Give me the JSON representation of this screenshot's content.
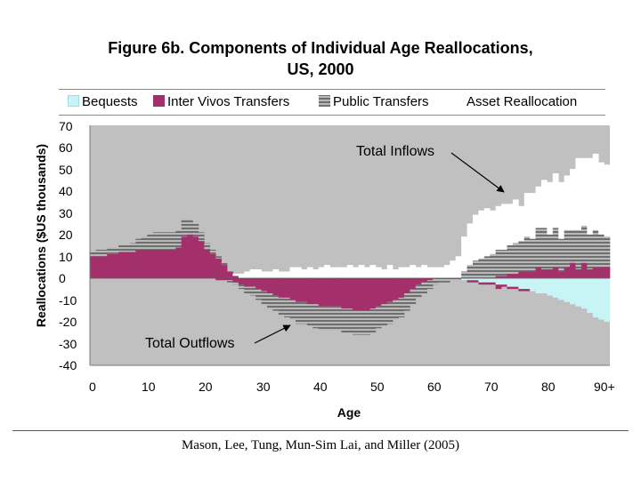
{
  "chart_data": {
    "type": "bar",
    "stacked": true,
    "title": "Figure 6b. Components of Individual Age Reallocations,",
    "subtitle": "US, 2000",
    "xlabel": "Age",
    "ylabel": "Reallocations ($US thousands)",
    "ylim": [
      -40,
      70
    ],
    "xlim": [
      0,
      90
    ],
    "yticks": [
      "70",
      "60",
      "50",
      "40",
      "30",
      "20",
      "10",
      "0",
      "-10",
      "-20",
      "-30",
      "-40"
    ],
    "xticks": [
      "0",
      "10",
      "20",
      "30",
      "40",
      "50",
      "60",
      "70",
      "80",
      "90+"
    ],
    "legend": [
      "Bequests",
      "Inter Vivos Transfers",
      "Public Transfers",
      "Asset Reallocation"
    ],
    "series": [
      {
        "name": "Bequests",
        "pos": [
          0,
          0,
          0,
          0,
          0,
          0,
          0,
          0,
          0,
          0,
          0,
          0,
          0,
          0,
          0,
          0,
          0,
          0,
          0,
          0,
          0,
          0,
          0,
          0,
          0,
          0,
          0,
          0,
          0,
          0,
          0,
          0,
          0,
          0,
          0,
          0,
          0,
          0,
          0,
          0,
          0,
          0,
          0,
          0,
          0,
          0,
          0,
          0,
          0,
          0,
          0,
          0,
          0,
          0,
          0,
          0,
          0,
          0,
          0,
          0,
          0,
          0,
          0,
          0,
          0,
          0,
          0,
          0,
          0,
          0,
          0,
          0,
          0,
          0,
          0,
          0,
          0,
          0,
          0,
          0,
          0,
          0,
          0,
          0,
          0,
          0,
          0,
          0,
          0,
          0,
          0
        ],
        "neg": [
          0,
          0,
          0,
          0,
          0,
          0,
          0,
          0,
          0,
          0,
          0,
          0,
          0,
          0,
          0,
          0,
          0,
          0,
          0,
          0,
          0,
          0,
          0,
          0,
          0,
          0,
          0,
          0,
          0,
          0,
          0,
          0,
          0,
          0,
          0,
          0,
          0,
          0,
          0,
          0,
          0,
          0,
          0,
          0,
          0,
          0,
          0,
          0,
          0,
          0,
          0,
          0,
          0,
          0,
          0,
          0,
          0,
          0,
          0,
          0,
          0,
          0,
          0,
          0,
          0,
          -1,
          -1,
          -1,
          -2,
          -2,
          -2,
          -3,
          -3,
          -4,
          -4,
          -5,
          -5,
          -6,
          -7,
          -7,
          -8,
          -9,
          -10,
          -11,
          -12,
          -13,
          -14,
          -16,
          -18,
          -19,
          -20
        ]
      },
      {
        "name": "Inter Vivos Transfers",
        "pos": [
          10,
          10,
          10,
          11,
          11,
          12,
          12,
          12,
          13,
          13,
          13,
          13,
          13,
          13,
          13,
          14,
          19,
          20,
          19,
          17,
          13,
          11,
          9,
          6,
          3,
          1,
          0,
          0,
          0,
          0,
          0,
          0,
          0,
          0,
          0,
          0,
          0,
          0,
          0,
          0,
          0,
          0,
          0,
          0,
          0,
          0,
          0,
          0,
          0,
          0,
          0,
          0,
          0,
          0,
          0,
          0,
          0,
          0,
          0,
          0,
          0,
          0,
          0,
          0,
          0,
          0,
          0,
          0,
          0,
          0,
          0,
          1,
          1,
          2,
          2,
          3,
          3,
          3,
          5,
          4,
          4,
          5,
          3,
          5,
          7,
          4,
          7,
          4,
          5,
          5,
          5
        ],
        "neg": [
          0,
          0,
          0,
          0,
          0,
          0,
          0,
          0,
          0,
          0,
          0,
          0,
          0,
          0,
          0,
          0,
          0,
          0,
          0,
          0,
          0,
          0,
          -1,
          -1,
          -1,
          -2,
          -3,
          -4,
          -4,
          -5,
          -6,
          -7,
          -8,
          -9,
          -9,
          -10,
          -11,
          -11,
          -12,
          -12,
          -13,
          -13,
          -13,
          -13,
          -14,
          -14,
          -15,
          -15,
          -15,
          -14,
          -13,
          -12,
          -11,
          -10,
          -9,
          -7,
          -5,
          -3,
          -2,
          -1,
          0,
          0,
          0,
          0,
          0,
          0,
          -1,
          -1,
          -1,
          -1,
          -1,
          -2,
          -1,
          -1,
          -1,
          -1,
          -1,
          0,
          0,
          0,
          0,
          0,
          0,
          0,
          0,
          0,
          0,
          0,
          0,
          0,
          0
        ]
      },
      {
        "name": "Public Transfers",
        "pos": [
          2,
          3,
          3,
          3,
          3,
          3,
          3,
          4,
          5,
          6,
          7,
          8,
          8,
          8,
          8,
          8,
          8,
          7,
          6,
          4,
          3,
          2,
          1,
          1,
          0,
          0,
          0,
          0,
          0,
          0,
          0,
          0,
          0,
          0,
          0,
          0,
          0,
          0,
          0,
          0,
          0,
          0,
          0,
          0,
          0,
          0,
          0,
          0,
          0,
          0,
          0,
          0,
          0,
          0,
          0,
          0,
          0,
          0,
          0,
          0,
          0,
          0,
          0,
          0,
          0,
          3,
          6,
          8,
          9,
          10,
          11,
          12,
          12,
          13,
          14,
          14,
          16,
          15,
          18,
          19,
          16,
          18,
          15,
          17,
          15,
          18,
          17,
          16,
          17,
          15,
          14
        ],
        "neg": [
          0,
          0,
          0,
          0,
          0,
          0,
          0,
          0,
          0,
          0,
          0,
          0,
          0,
          0,
          0,
          0,
          0,
          0,
          0,
          0,
          0,
          0,
          0,
          0,
          -1,
          -1,
          -2,
          -3,
          -4,
          -5,
          -6,
          -7,
          -7,
          -8,
          -9,
          -9,
          -10,
          -10,
          -10,
          -11,
          -11,
          -11,
          -11,
          -11,
          -11,
          -11,
          -11,
          -11,
          -11,
          -11,
          -10,
          -10,
          -10,
          -9,
          -9,
          -8,
          -7,
          -6,
          -5,
          -4,
          -3,
          -2,
          -2,
          -1,
          -1,
          0,
          0,
          0,
          0,
          0,
          0,
          0,
          0,
          0,
          0,
          0,
          0,
          0,
          0,
          0,
          0,
          0,
          0,
          0,
          0,
          0,
          0,
          0,
          0,
          0,
          0
        ]
      },
      {
        "name": "Asset Reallocation",
        "pos": [
          0,
          0,
          0,
          0,
          0,
          0,
          0,
          0,
          0,
          0,
          0,
          0,
          0,
          0,
          0,
          0,
          0,
          0,
          0,
          0,
          0,
          0,
          0,
          0,
          0,
          1,
          2,
          3,
          4,
          4,
          3,
          3,
          4,
          3,
          3,
          5,
          5,
          4,
          5,
          4,
          5,
          6,
          5,
          5,
          5,
          6,
          5,
          6,
          5,
          6,
          5,
          4,
          6,
          4,
          5,
          5,
          6,
          5,
          6,
          5,
          5,
          5,
          6,
          8,
          10,
          16,
          19,
          21,
          22,
          22,
          20,
          20,
          21,
          19,
          20,
          16,
          20,
          21,
          19,
          22,
          24,
          25,
          26,
          25,
          28,
          33,
          31,
          35,
          35,
          33,
          33
        ],
        "neg": [
          0,
          0,
          0,
          0,
          0,
          0,
          0,
          0,
          0,
          0,
          0,
          0,
          0,
          0,
          0,
          0,
          0,
          0,
          0,
          0,
          0,
          0,
          0,
          0,
          0,
          0,
          0,
          0,
          0,
          0,
          0,
          0,
          0,
          0,
          0,
          0,
          0,
          0,
          0,
          0,
          0,
          0,
          0,
          0,
          0,
          0,
          0,
          0,
          0,
          0,
          0,
          0,
          0,
          0,
          0,
          0,
          0,
          0,
          0,
          0,
          0,
          0,
          0,
          0,
          0,
          0,
          0,
          0,
          0,
          0,
          0,
          0,
          0,
          0,
          0,
          0,
          0,
          0,
          0,
          0,
          0,
          0,
          0,
          0,
          0,
          0,
          0,
          0,
          0,
          0,
          0
        ]
      }
    ],
    "annotations": [
      {
        "text": "Total Inflows",
        "points_to_age": 71,
        "points_to_value": 38
      },
      {
        "text": "Total Outflows",
        "points_to_age": 36,
        "points_to_value": -22
      }
    ]
  },
  "citation": "Mason, Lee, Tung, Mun-Sim Lai, and Miller (2005)",
  "colors": {
    "plot_background": "#c0c0c0",
    "bequests": "#c8f4f6",
    "inter_vivos": "#a3306b",
    "public_dark": "#6e6e6e",
    "public_light": "#b8b8b8",
    "asset": "#ffffff"
  }
}
